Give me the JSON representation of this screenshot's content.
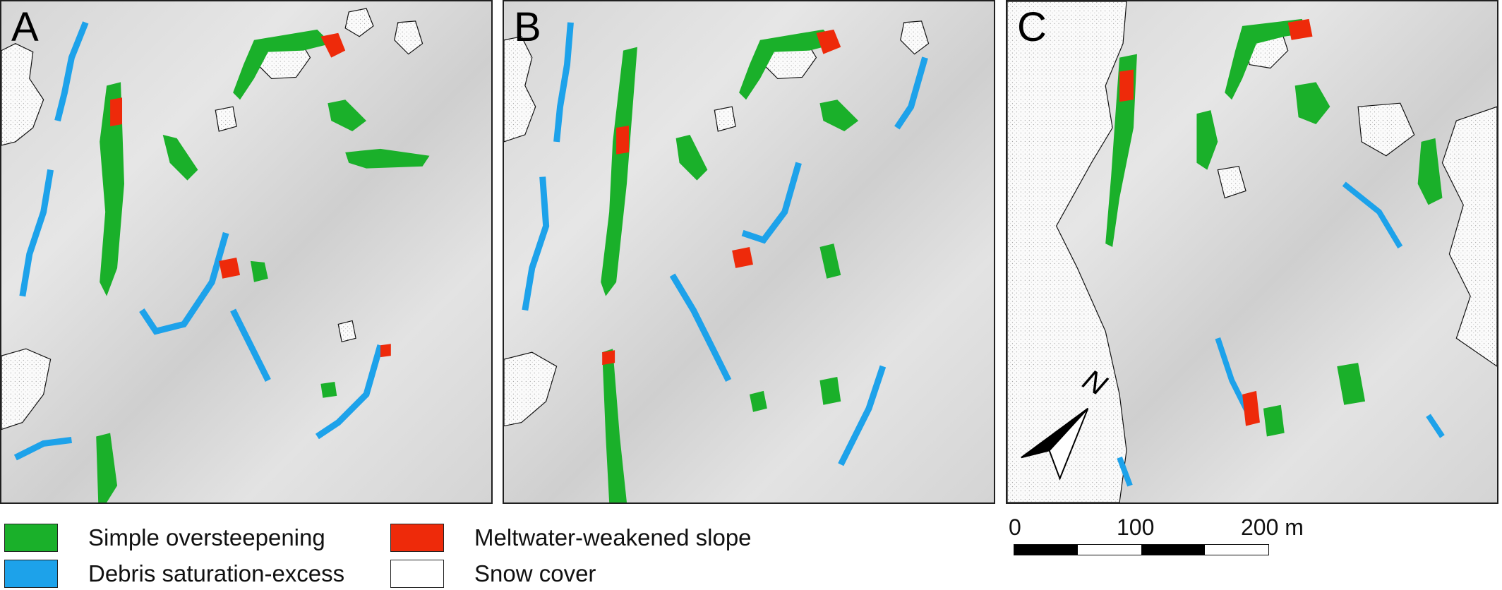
{
  "panels": [
    {
      "id": "A",
      "label": "A"
    },
    {
      "id": "B",
      "label": "B"
    },
    {
      "id": "C",
      "label": "C"
    }
  ],
  "legend": {
    "items": [
      {
        "label": "Simple oversteepening",
        "color": "#1ab02a"
      },
      {
        "label": "Debris saturation-excess",
        "color": "#1da2ea"
      },
      {
        "label": "Meltwater-weakened slope",
        "color": "#ee2a0a"
      },
      {
        "label": "Snow cover",
        "color": "#ffffff"
      }
    ]
  },
  "scale_bar": {
    "ticks": [
      "0",
      "100",
      "200 m"
    ]
  },
  "north_arrow": {
    "label": "N"
  },
  "colors": {
    "oversteepening": "#1ab02a",
    "saturation": "#1da2ea",
    "meltwater": "#ee2a0a",
    "snow": "#ffffff",
    "terrain": "#d9d9d9"
  }
}
